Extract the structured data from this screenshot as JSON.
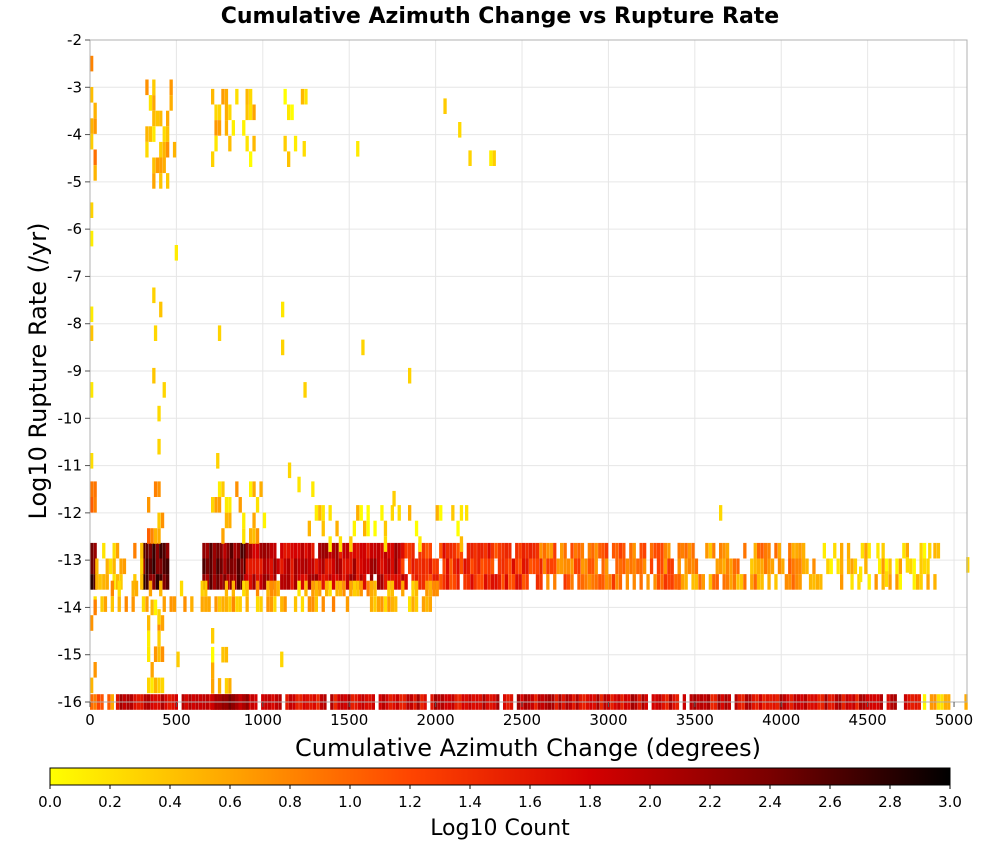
{
  "chart_data": {
    "type": "heatmap",
    "title": "Cumulative Azimuth Change vs Rupture Rate",
    "xlabel": "Cumulative Azimuth Change (degrees)",
    "ylabel": "Log10 Rupture Rate (/yr)",
    "xlim": [
      0,
      5075
    ],
    "ylim": [
      -16,
      -2
    ],
    "x_ticks": [
      "0",
      "500",
      "1000",
      "1500",
      "2000",
      "2500",
      "3000",
      "3500",
      "4000",
      "4500",
      "5000"
    ],
    "y_ticks": [
      "-2",
      "-3",
      "-4",
      "-5",
      "-6",
      "-7",
      "-8",
      "-9",
      "-10",
      "-11",
      "-12",
      "-13",
      "-14",
      "-15",
      "-16"
    ],
    "grid": true,
    "colorbar": {
      "label": "Log10 Count",
      "range": [
        0.0,
        3.0
      ],
      "ticks": [
        "0.0",
        "0.2",
        "0.4",
        "0.6",
        "0.8",
        "1.0",
        "1.2",
        "1.4",
        "1.6",
        "1.8",
        "2.0",
        "2.2",
        "2.4",
        "2.6",
        "2.8",
        "3.0"
      ],
      "colormap": [
        "#ffff00",
        "#ffa500",
        "#ff4500",
        "#d40000",
        "#7a0000",
        "#000000"
      ]
    },
    "regions": [
      {
        "y": [
          -16,
          -16
        ],
        "x": [
          150,
          4800
        ],
        "level": 1.8,
        "density": 0.95
      },
      {
        "y": [
          -16,
          -16
        ],
        "x": [
          4800,
          5060
        ],
        "level": 0.4,
        "density": 0.6
      },
      {
        "y": [
          -16,
          -16
        ],
        "x": [
          0,
          150
        ],
        "level": 0.9,
        "density": 0.6
      },
      {
        "y": [
          -16,
          -16
        ],
        "x": [
          700,
          900
        ],
        "level": 2.2,
        "density": 1.0
      },
      {
        "y": [
          -12.8,
          -13.6
        ],
        "x": [
          0,
          30
        ],
        "level": 2.5,
        "density": 1.0
      },
      {
        "y": [
          -12.8,
          -13.6
        ],
        "x": [
          300,
          450
        ],
        "level": 2.5,
        "density": 1.0
      },
      {
        "y": [
          -12.8,
          -13.6
        ],
        "x": [
          650,
          900
        ],
        "level": 2.3,
        "density": 1.0
      },
      {
        "y": [
          -12.8,
          -13.6
        ],
        "x": [
          900,
          1800
        ],
        "level": 1.9,
        "density": 0.95
      },
      {
        "y": [
          -12.8,
          -13.6
        ],
        "x": [
          1800,
          2600
        ],
        "level": 1.4,
        "density": 0.9
      },
      {
        "y": [
          -12.8,
          -13.6
        ],
        "x": [
          2600,
          3400
        ],
        "level": 1.0,
        "density": 0.8
      },
      {
        "y": [
          -12.8,
          -13.6
        ],
        "x": [
          3400,
          4200
        ],
        "level": 0.7,
        "density": 0.7
      },
      {
        "y": [
          -12.8,
          -13.6
        ],
        "x": [
          4200,
          4900
        ],
        "level": 0.35,
        "density": 0.45
      },
      {
        "y": [
          -12.8,
          -13.6
        ],
        "x": [
          30,
          300
        ],
        "level": 0.5,
        "density": 0.45
      },
      {
        "y": [
          -13.6,
          -14.0
        ],
        "x": [
          0,
          2000
        ],
        "level": 0.5,
        "density": 0.5
      },
      {
        "y": [
          -11.5,
          -12.8
        ],
        "x": [
          0,
          30
        ],
        "level": 0.8,
        "density": 0.7
      },
      {
        "y": [
          -11.5,
          -12.8
        ],
        "x": [
          330,
          420
        ],
        "level": 0.7,
        "density": 0.6
      },
      {
        "y": [
          -11.5,
          -12.8
        ],
        "x": [
          700,
          1000
        ],
        "level": 0.4,
        "density": 0.35
      },
      {
        "y": [
          -12.0,
          -12.8
        ],
        "x": [
          1000,
          2200
        ],
        "level": 0.2,
        "density": 0.15
      },
      {
        "y": [
          -14.0,
          -15.8
        ],
        "x": [
          0,
          30
        ],
        "level": 0.5,
        "density": 0.6
      },
      {
        "y": [
          -14.0,
          -15.8
        ],
        "x": [
          330,
          420
        ],
        "level": 0.4,
        "density": 0.5
      },
      {
        "y": [
          -15.0,
          -15.8
        ],
        "x": [
          700,
          850
        ],
        "level": 0.3,
        "density": 0.4
      },
      {
        "y": [
          -2.5,
          -5.0
        ],
        "x": [
          0,
          30
        ],
        "level": 0.6,
        "density": 0.6
      },
      {
        "y": [
          -3.0,
          -5.0
        ],
        "x": [
          320,
          480
        ],
        "level": 0.4,
        "density": 0.45
      },
      {
        "y": [
          -3.2,
          -4.6
        ],
        "x": [
          700,
          950
        ],
        "level": 0.35,
        "density": 0.35
      },
      {
        "y": [
          -3.2,
          -4.6
        ],
        "x": [
          1100,
          1250
        ],
        "level": 0.15,
        "density": 0.25
      }
    ],
    "sparse_points": [
      [
        2045,
        -3.4
      ],
      [
        2130,
        -3.9
      ],
      [
        2190,
        -4.5
      ],
      [
        2310,
        -4.5
      ],
      [
        2330,
        -4.5
      ],
      [
        1540,
        -4.3
      ],
      [
        1230,
        -4.3
      ],
      [
        490,
        -6.5
      ],
      [
        360,
        -7.4
      ],
      [
        400,
        -7.7
      ],
      [
        370,
        -8.2
      ],
      [
        740,
        -8.2
      ],
      [
        1105,
        -7.7
      ],
      [
        1105,
        -8.5
      ],
      [
        1570,
        -8.5
      ],
      [
        1840,
        -9.1
      ],
      [
        1235,
        -9.4
      ],
      [
        360,
        -9.1
      ],
      [
        420,
        -9.4
      ],
      [
        390,
        -9.9
      ],
      [
        390,
        -10.6
      ],
      [
        730,
        -10.9
      ],
      [
        1145,
        -11.1
      ],
      [
        1200,
        -11.4
      ],
      [
        1280,
        -11.5
      ],
      [
        1750,
        -11.7
      ],
      [
        1780,
        -12.0
      ],
      [
        2090,
        -12.0
      ],
      [
        2170,
        -12.0
      ],
      [
        3640,
        -12.0
      ],
      [
        5070,
        -13.1
      ],
      [
        4850,
        -12.8
      ],
      [
        4720,
        -13.1
      ],
      [
        4600,
        -13.4
      ],
      [
        4450,
        -13.3
      ],
      [
        4300,
        -12.8
      ],
      [
        4550,
        -12.8
      ],
      [
        1100,
        -15.1
      ],
      [
        500,
        -15.1
      ],
      [
        700,
        -14.6
      ],
      [
        390,
        -14.2
      ],
      [
        0,
        -5.6
      ],
      [
        0,
        -6.2
      ],
      [
        0,
        -7.8
      ],
      [
        0,
        -8.2
      ],
      [
        0,
        -9.4
      ],
      [
        0,
        -10.9
      ]
    ]
  }
}
